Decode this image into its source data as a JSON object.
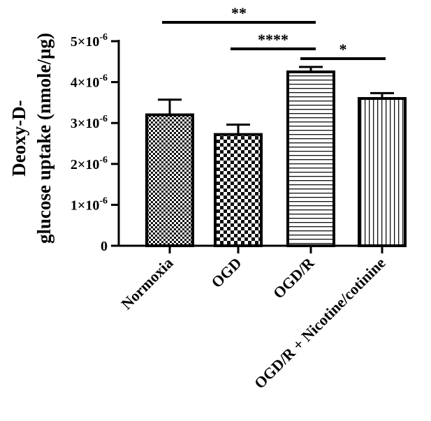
{
  "chart_data": {
    "type": "bar",
    "ylabel_lines": [
      "Deoxy-D-",
      "glucose uptake (nmole/µg)"
    ],
    "categories": [
      "Normoxia",
      "OGD",
      "OGD/R",
      "OGD/R + Nicotine/cotinine"
    ],
    "values": [
      3.2e-06,
      2.72e-06,
      4.25e-06,
      3.6e-06
    ],
    "errors": [
      3.7e-07,
      2.4e-07,
      1.2e-07,
      1.3e-07
    ],
    "patterns": [
      "fine-checker",
      "coarse-checker",
      "horizontal-stripes",
      "vertical-stripes"
    ],
    "ylim": [
      0,
      5e-06
    ],
    "yticks": [
      {
        "value": 0,
        "label": "0"
      },
      {
        "value": 1e-06,
        "label": "1×10",
        "exp": "-6"
      },
      {
        "value": 2e-06,
        "label": "2×10",
        "exp": "-6"
      },
      {
        "value": 3e-06,
        "label": "3×10",
        "exp": "-6"
      },
      {
        "value": 4e-06,
        "label": "4×10",
        "exp": "-6"
      },
      {
        "value": 5e-06,
        "label": "5×10",
        "exp": "-6"
      }
    ],
    "significance": [
      {
        "from": 0,
        "to": 2,
        "label": "**"
      },
      {
        "from": 1,
        "to": 2,
        "label": "****"
      },
      {
        "from": 2,
        "to": 3,
        "label": "*"
      }
    ],
    "grid": false,
    "legend": "none"
  }
}
